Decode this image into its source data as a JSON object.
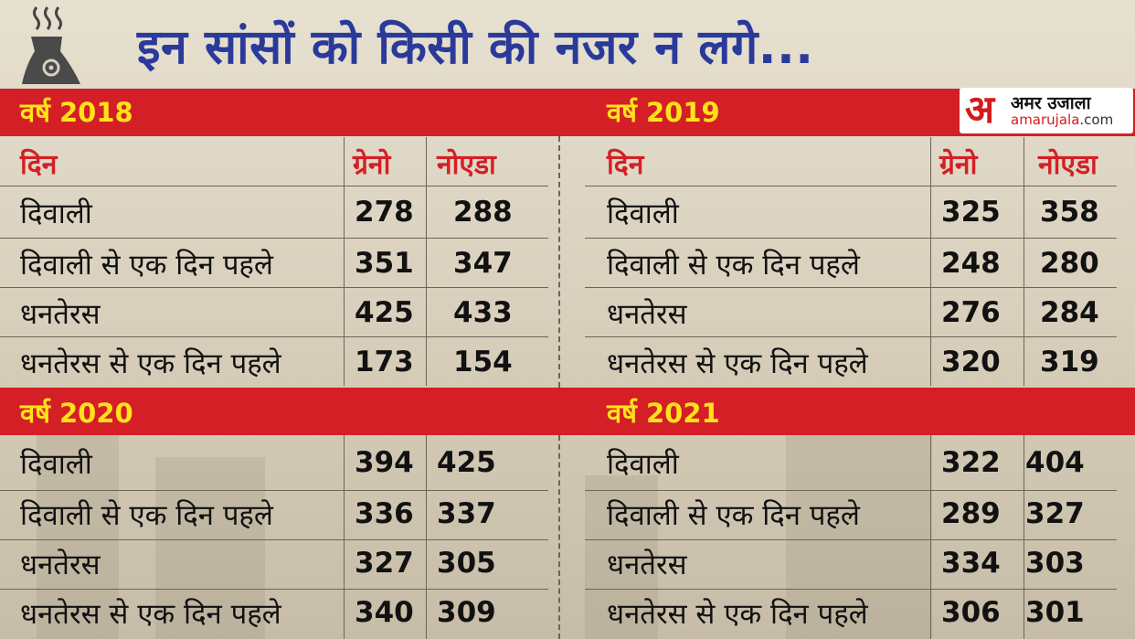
{
  "title": "इन सांसों को किसी की नजर न लगे...",
  "logo": {
    "mark": "अ",
    "name": "अमर उजाला",
    "url_main": "amarujala",
    "url_suffix": ".com"
  },
  "tables": [
    {
      "year_label": "वर्ष 2018",
      "headers": [
        "दिन",
        "ग्रेनो",
        "नोएडा"
      ],
      "rows": [
        {
          "day": "दिवाली",
          "greno": "278",
          "noida": "288"
        },
        {
          "day": "दिवाली से एक दिन पहले",
          "greno": "351",
          "noida": "347"
        },
        {
          "day": "धनतेरस",
          "greno": "425",
          "noida": "433"
        },
        {
          "day": "धनतेरस से एक दिन पहले",
          "greno": "173",
          "noida": "154"
        }
      ]
    },
    {
      "year_label": "वर्ष 2019",
      "headers": [
        "दिन",
        "ग्रेनो",
        "नोएडा"
      ],
      "rows": [
        {
          "day": "दिवाली",
          "greno": "325",
          "noida": "358"
        },
        {
          "day": "दिवाली से एक दिन पहले",
          "greno": "248",
          "noida": "280"
        },
        {
          "day": "धनतेरस",
          "greno": "276",
          "noida": "284"
        },
        {
          "day": "धनतेरस से एक दिन पहले",
          "greno": "320",
          "noida": "319"
        }
      ]
    },
    {
      "year_label": "वर्ष 2020",
      "rows": [
        {
          "day": "दिवाली",
          "greno": "394",
          "noida": "425"
        },
        {
          "day": "दिवाली से एक दिन पहले",
          "greno": "336",
          "noida": "337"
        },
        {
          "day": "धनतेरस",
          "greno": "327",
          "noida": "305"
        },
        {
          "day": "धनतेरस से एक दिन पहले",
          "greno": "340",
          "noida": "309"
        }
      ]
    },
    {
      "year_label": "वर्ष 2021",
      "rows": [
        {
          "day": "दिवाली",
          "greno": "322",
          "noida": "404"
        },
        {
          "day": "दिवाली से एक दिन पहले",
          "greno": "289",
          "noida": "327"
        },
        {
          "day": "धनतेरस",
          "greno": "334",
          "noida": "303"
        },
        {
          "day": "धनतेरस से एक दिन पहले",
          "greno": "306",
          "noida": "301"
        }
      ]
    }
  ],
  "colors": {
    "band": "#d41f26",
    "year": "#ffe21a",
    "title": "#2a3a9a",
    "header_text": "#d41f26"
  }
}
